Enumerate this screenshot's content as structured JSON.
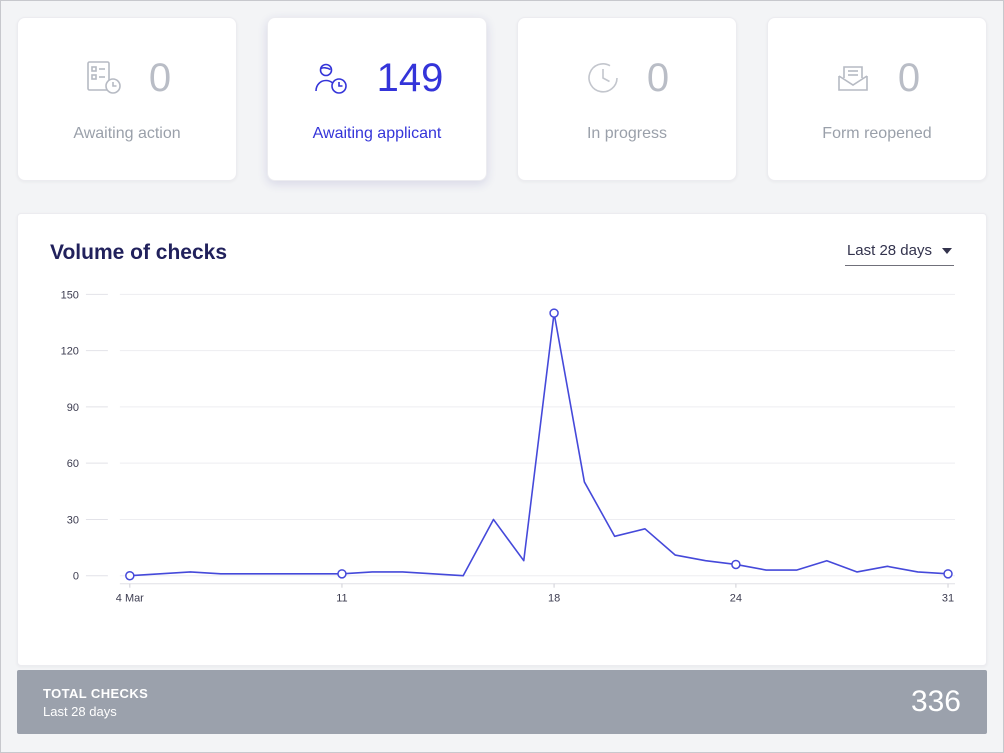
{
  "stats": {
    "cards": [
      {
        "id": "awaiting-action",
        "icon": "document-clock-icon",
        "value": "0",
        "label": "Awaiting action",
        "state": "default"
      },
      {
        "id": "awaiting-applicant",
        "icon": "person-clock-icon",
        "value": "149",
        "label": "Awaiting applicant",
        "state": "active"
      },
      {
        "id": "in-progress",
        "icon": "clock-icon",
        "value": "0",
        "label": "In progress",
        "state": "default"
      },
      {
        "id": "form-reopened",
        "icon": "envelope-icon",
        "value": "0",
        "label": "Form reopened",
        "state": "default"
      }
    ]
  },
  "volume_panel": {
    "title": "Volume of checks",
    "range_selector": "Last 28 days"
  },
  "footer": {
    "title": "TOTAL CHECKS",
    "subtitle": "Last 28 days",
    "total": "336"
  },
  "colors": {
    "accent": "#3434d9",
    "line": "#4549da",
    "muted_value": "#b9bdc6",
    "muted_label": "#9aa0aa",
    "title_navy": "#21215c",
    "footer_bg": "#9ba1ac",
    "gridline": "#ededf1",
    "axis_text": "#3c3c50"
  },
  "chart_data": {
    "type": "line",
    "title": "Volume of checks",
    "x": [
      "4 Mar",
      "5 Mar",
      "6 Mar",
      "7 Mar",
      "8 Mar",
      "9 Mar",
      "10 Mar",
      "11 Mar",
      "12 Mar",
      "13 Mar",
      "14 Mar",
      "15 Mar",
      "16 Mar",
      "17 Mar",
      "18 Mar",
      "19 Mar",
      "20 Mar",
      "21 Mar",
      "22 Mar",
      "23 Mar",
      "24 Mar",
      "25 Mar",
      "26 Mar",
      "27 Mar",
      "28 Mar",
      "29 Mar",
      "30 Mar",
      "31 Mar"
    ],
    "values": [
      0,
      1,
      2,
      1,
      1,
      1,
      1,
      1,
      2,
      2,
      1,
      0,
      30,
      8,
      140,
      50,
      21,
      25,
      11,
      8,
      6,
      3,
      3,
      8,
      2,
      5,
      2,
      1
    ],
    "total": 336,
    "ylim": [
      0,
      150
    ],
    "yticks": [
      0,
      30,
      60,
      90,
      120,
      150
    ],
    "xtick_indices": [
      0,
      7,
      14,
      20,
      27
    ],
    "xtick_labels": [
      "4 Mar",
      "11",
      "18",
      "24",
      "31"
    ],
    "marker_indices": [
      0,
      7,
      14,
      20,
      27
    ],
    "grid": "horizontal",
    "legend": "none"
  }
}
